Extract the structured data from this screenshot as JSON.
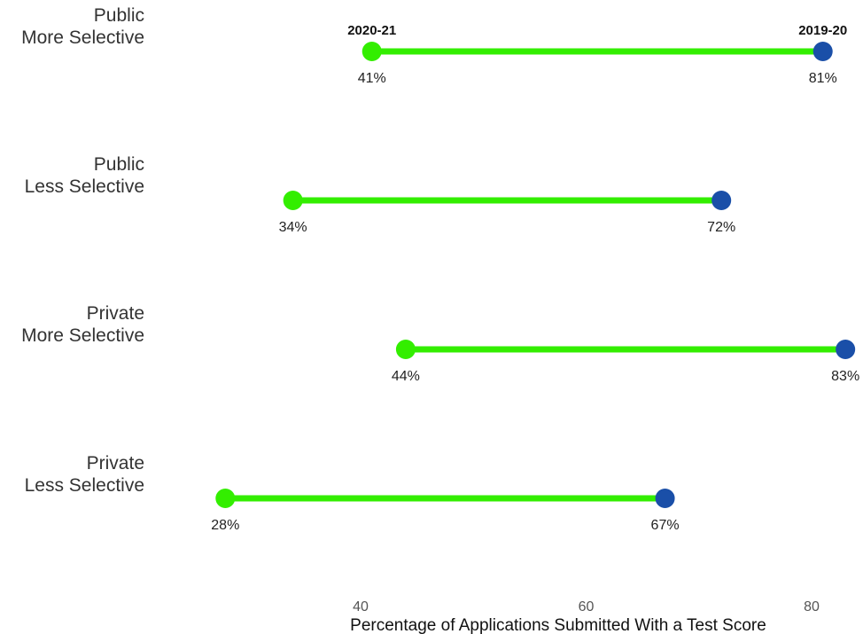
{
  "chart_data": {
    "type": "dumbbell",
    "categories": [
      [
        "Public",
        "More Selective"
      ],
      [
        "Public",
        "Less Selective"
      ],
      [
        "Private",
        "More Selective"
      ],
      [
        "Private",
        "Less Selective"
      ]
    ],
    "series": [
      {
        "name": "2020-21",
        "color": "#33ee00",
        "values": [
          41,
          34,
          44,
          28
        ]
      },
      {
        "name": "2019-20",
        "color": "#1a4fa8",
        "values": [
          81,
          72,
          83,
          67
        ]
      }
    ],
    "value_labels": {
      "2020-21": [
        "41%",
        "34%",
        "44%",
        "28%"
      ],
      "2019-20": [
        "81%",
        "72%",
        "83%",
        "67%"
      ]
    },
    "xlabel": "Percentage of Applications Submitted With a Test Score",
    "xticks": [
      40,
      60,
      80
    ],
    "xtick_labels": [
      "40",
      "60",
      "80"
    ],
    "connector_color": "#33ee00",
    "grid": false,
    "legend": "labels above first row"
  }
}
